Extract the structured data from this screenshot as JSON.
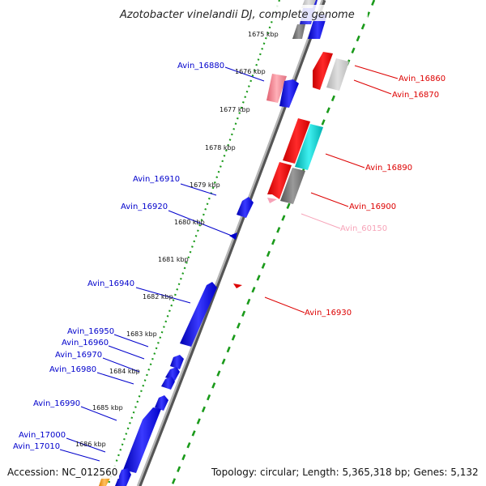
{
  "title": "Azotobacter vinelandii DJ, complete genome",
  "accession": "Accession: NC_012560",
  "topology": "Topology: circular; Length: 5,365,318 bp; Genes: 5,132",
  "colors": {
    "left_label": "#0000cc",
    "right_label": "#dd0000",
    "rna_label": "#f7a3b8",
    "dots_left": "#1a9a1a",
    "dashes_right": "#1a9a1a",
    "backbone": "#8a8a8a"
  },
  "ticks": [
    {
      "label": "1675 kbp"
    },
    {
      "label": "1676 kbp"
    },
    {
      "label": "1677 kbp"
    },
    {
      "label": "1678 kbp"
    },
    {
      "label": "1679 kbp"
    },
    {
      "label": "1680 kbp"
    },
    {
      "label": "1681 kbp"
    },
    {
      "label": "1682 kbp"
    },
    {
      "label": "1683 kbp"
    },
    {
      "label": "1684 kbp"
    },
    {
      "label": "1685 kbp"
    },
    {
      "label": "1686 kbp"
    }
  ],
  "gene_labels_left": [
    {
      "label": "Avin_16880"
    },
    {
      "label": "Avin_16910"
    },
    {
      "label": "Avin_16920"
    },
    {
      "label": "Avin_16940"
    },
    {
      "label": "Avin_16950"
    },
    {
      "label": "Avin_16960"
    },
    {
      "label": "Avin_16970"
    },
    {
      "label": "Avin_16980"
    },
    {
      "label": "Avin_16990"
    },
    {
      "label": "Avin_17000"
    },
    {
      "label": "Avin_17010"
    }
  ],
  "gene_labels_right": [
    {
      "label": "Avin_16860"
    },
    {
      "label": "Avin_16870"
    },
    {
      "label": "Avin_16890"
    },
    {
      "label": "Avin_16900"
    },
    {
      "label": "Avin_60150"
    },
    {
      "label": "Avin_16930"
    }
  ]
}
